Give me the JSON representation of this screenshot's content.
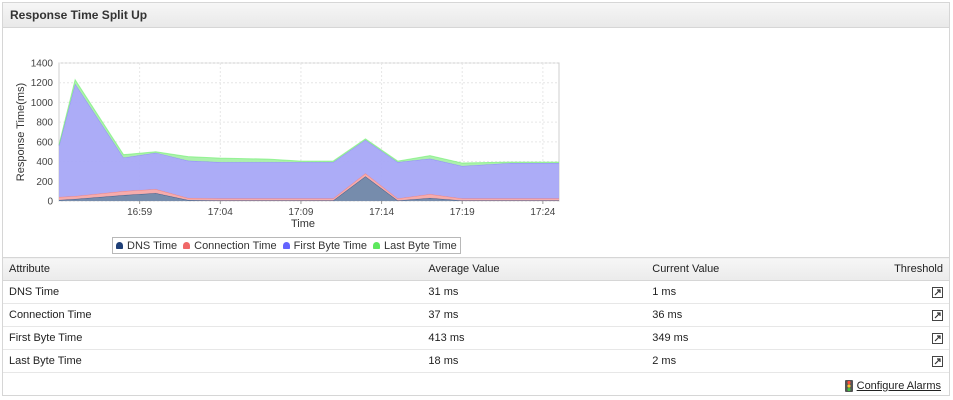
{
  "panel": {
    "title": "Response Time Split Up"
  },
  "chart_data": {
    "type": "area",
    "stacked": true,
    "ylabel": "Response Time(ms)",
    "xlabel": "Time",
    "ylim": [
      0,
      1400
    ],
    "yticks": [
      0,
      200,
      400,
      600,
      800,
      1000,
      1200,
      1400
    ],
    "x_ticks": [
      "16:59",
      "17:04",
      "17:09",
      "17:14",
      "17:19",
      "17:24"
    ],
    "x": [
      "16:54",
      "16:55",
      "16:58",
      "17:00",
      "17:02",
      "17:04",
      "17:07",
      "17:09",
      "17:11",
      "17:13",
      "17:15",
      "17:17",
      "17:19",
      "17:22",
      "17:25"
    ],
    "grid": true,
    "legend_position": "bottom",
    "series": [
      {
        "name": "DNS Time",
        "color": "#1f3f77",
        "values": [
          10,
          20,
          60,
          80,
          10,
          5,
          5,
          5,
          5,
          250,
          5,
          30,
          5,
          5,
          5
        ]
      },
      {
        "name": "Connection Time",
        "color": "#f06868",
        "values": [
          30,
          30,
          40,
          40,
          20,
          20,
          20,
          20,
          20,
          30,
          20,
          40,
          20,
          20,
          20
        ]
      },
      {
        "name": "First Byte Time",
        "color": "#7b7bf5",
        "values": [
          520,
          1140,
          340,
          370,
          380,
          370,
          370,
          370,
          370,
          340,
          370,
          360,
          330,
          360,
          360
        ]
      },
      {
        "name": "Last Byte Time",
        "color": "#6df06d",
        "values": [
          10,
          40,
          30,
          10,
          40,
          40,
          30,
          10,
          10,
          10,
          10,
          30,
          30,
          10,
          10
        ]
      }
    ]
  },
  "table": {
    "headers": {
      "attribute": "Attribute",
      "average": "Average Value",
      "current": "Current Value",
      "threshold": "Threshold"
    },
    "rows": [
      {
        "attribute": "DNS Time",
        "average": "31 ms",
        "current": "1 ms"
      },
      {
        "attribute": "Connection Time",
        "average": "37 ms",
        "current": "36 ms"
      },
      {
        "attribute": "First Byte Time",
        "average": "413 ms",
        "current": "349 ms"
      },
      {
        "attribute": "Last Byte Time",
        "average": "18 ms",
        "current": "2 ms"
      }
    ]
  },
  "footer": {
    "configure_label": "Configure Alarms"
  }
}
